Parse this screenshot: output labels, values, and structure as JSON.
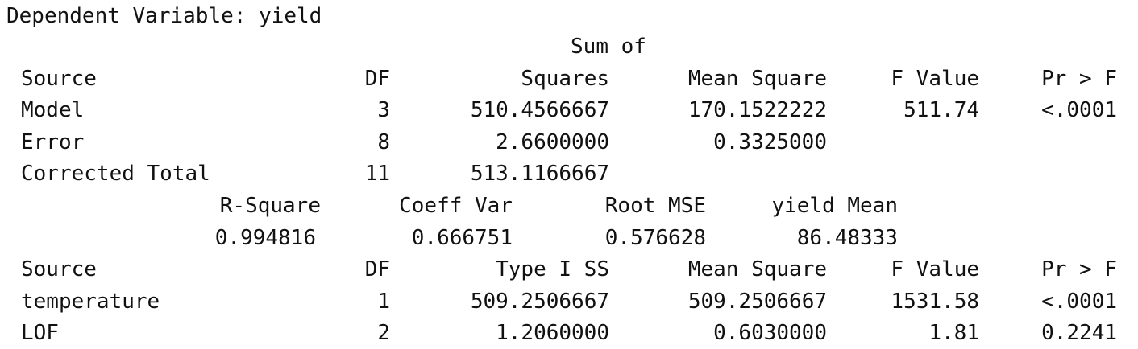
{
  "header": {
    "dependent_variable": "Dependent Variable: yield"
  },
  "anova": {
    "col_ss_top": "Sum of",
    "headers": [
      "Source",
      "DF",
      "Squares",
      "Mean Square",
      "F Value",
      "Pr > F"
    ],
    "rows": [
      [
        "Model",
        "3",
        "510.4566667",
        "170.1522222",
        "511.74",
        "<.0001"
      ],
      [
        "Error",
        "8",
        "2.6600000",
        "0.3325000",
        "",
        ""
      ],
      [
        "Corrected Total",
        "11",
        "513.1166667",
        "",
        "",
        ""
      ]
    ]
  },
  "fit_stats": {
    "headers": [
      "R-Square",
      "Coeff Var",
      "Root MSE",
      "yield Mean"
    ],
    "values": [
      "0.994816",
      "0.666751",
      "0.576628",
      "86.48333"
    ]
  },
  "type1": {
    "headers": [
      "Source",
      "DF",
      "Type I SS",
      "Mean Square",
      "F Value",
      "Pr > F"
    ],
    "rows": [
      [
        "temperature",
        "1",
        "509.2506667",
        "509.2506667",
        "1531.58",
        "<.0001"
      ],
      [
        "LOF",
        "2",
        "1.2060000",
        "0.6030000",
        "1.81",
        "0.2241"
      ]
    ]
  }
}
